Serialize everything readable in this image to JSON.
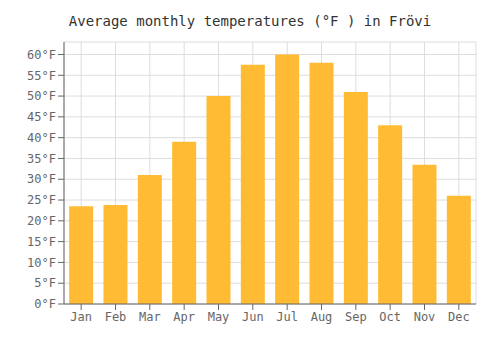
{
  "chart_data": {
    "type": "bar",
    "title": "Average monthly temperatures (°F ) in Frövi",
    "categories": [
      "Jan",
      "Feb",
      "Mar",
      "Apr",
      "May",
      "Jun",
      "Jul",
      "Aug",
      "Sep",
      "Oct",
      "Nov",
      "Dec"
    ],
    "values": [
      23.5,
      23.8,
      31.0,
      39.0,
      50.0,
      57.5,
      60.0,
      58.0,
      51.0,
      43.0,
      33.5,
      26.0
    ],
    "color": "#FFBB33",
    "ylim": [
      0,
      63
    ],
    "yticks": [
      {
        "value": 0,
        "label": "0°F"
      },
      {
        "value": 5,
        "label": "5°F"
      },
      {
        "value": 10,
        "label": "10°F"
      },
      {
        "value": 15,
        "label": "15°F"
      },
      {
        "value": 20,
        "label": "20°F"
      },
      {
        "value": 25,
        "label": "25°F"
      },
      {
        "value": 30,
        "label": "30°F"
      },
      {
        "value": 35,
        "label": "35°F"
      },
      {
        "value": 40,
        "label": "40°F"
      },
      {
        "value": 45,
        "label": "45°F"
      },
      {
        "value": 50,
        "label": "50°F"
      },
      {
        "value": 55,
        "label": "55°F"
      },
      {
        "value": 60,
        "label": "60°F"
      }
    ],
    "grid": true
  }
}
